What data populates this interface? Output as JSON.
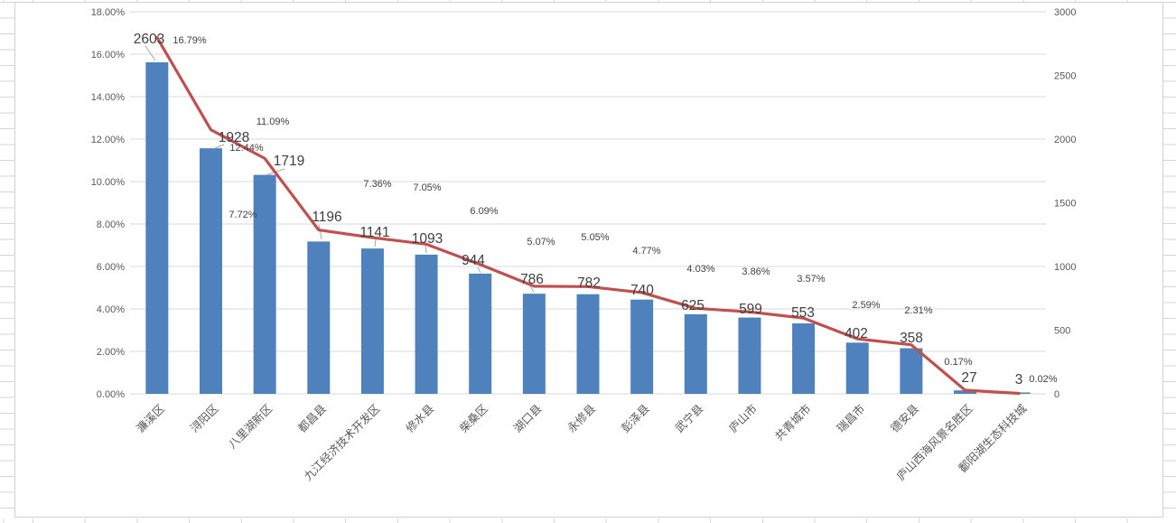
{
  "colors": {
    "bar": "#4F81BD",
    "line": "#C0504D",
    "gridline": "#D9D9D9",
    "axis_text": "#595959",
    "value_label": "#3F3F3F",
    "pct_label": "#404040",
    "leader_line": "#A6A6A6"
  },
  "chart_data": {
    "type": "bar",
    "subtype": "combo-bar-line-pareto",
    "title": "",
    "xlabel": "",
    "ylabel": "",
    "grid": true,
    "legend_position": "none",
    "categories": [
      "濂溪区",
      "浔阳区",
      "八里湖新区",
      "都昌县",
      "九江经济技术开发区",
      "修水县",
      "柴桑区",
      "湖口县",
      "永修县",
      "彭泽县",
      "武宁县",
      "庐山市",
      "共青城市",
      "瑞昌市",
      "德安县",
      "庐山西海风景名胜区",
      "鄱阳湖生态科技城"
    ],
    "series": [
      {
        "name": "count-bars",
        "type": "bar",
        "axis": "right",
        "values": [
          2603,
          1928,
          1719,
          1196,
          1141,
          1093,
          944,
          786,
          782,
          740,
          625,
          599,
          553,
          402,
          358,
          27,
          3
        ],
        "labels": [
          "2603",
          "1928",
          "1719",
          "1196",
          "1141",
          "1093",
          "944",
          "786",
          "782",
          "740",
          "625",
          "599",
          "553",
          "402",
          "358",
          "27",
          "3"
        ]
      },
      {
        "name": "percent-line",
        "type": "line",
        "axis": "left",
        "values": [
          16.79,
          12.44,
          11.09,
          7.72,
          7.36,
          7.05,
          6.09,
          5.07,
          5.05,
          4.77,
          4.03,
          3.86,
          3.57,
          2.59,
          2.31,
          0.17,
          0.02
        ],
        "labels": [
          "16.79%",
          "12.44%",
          "11.09%",
          "7.72%",
          "7.36%",
          "7.05%",
          "6.09%",
          "5.07%",
          "5.05%",
          "4.77%",
          "4.03%",
          "3.86%",
          "3.57%",
          "2.59%",
          "2.31%",
          "0.17%",
          "0.02%"
        ]
      }
    ],
    "left_axis": {
      "min": 0,
      "max": 18,
      "tick_labels": [
        "18.00%",
        "16.00%",
        "14.00%",
        "12.00%",
        "10.00%",
        "8.00%",
        "6.00%",
        "4.00%",
        "2.00%",
        "0.00%"
      ]
    },
    "right_axis": {
      "min": 0,
      "max": 3000,
      "tick_labels": [
        "3000",
        "2500",
        "2000",
        "1500",
        "1000",
        "500",
        "0"
      ]
    }
  }
}
